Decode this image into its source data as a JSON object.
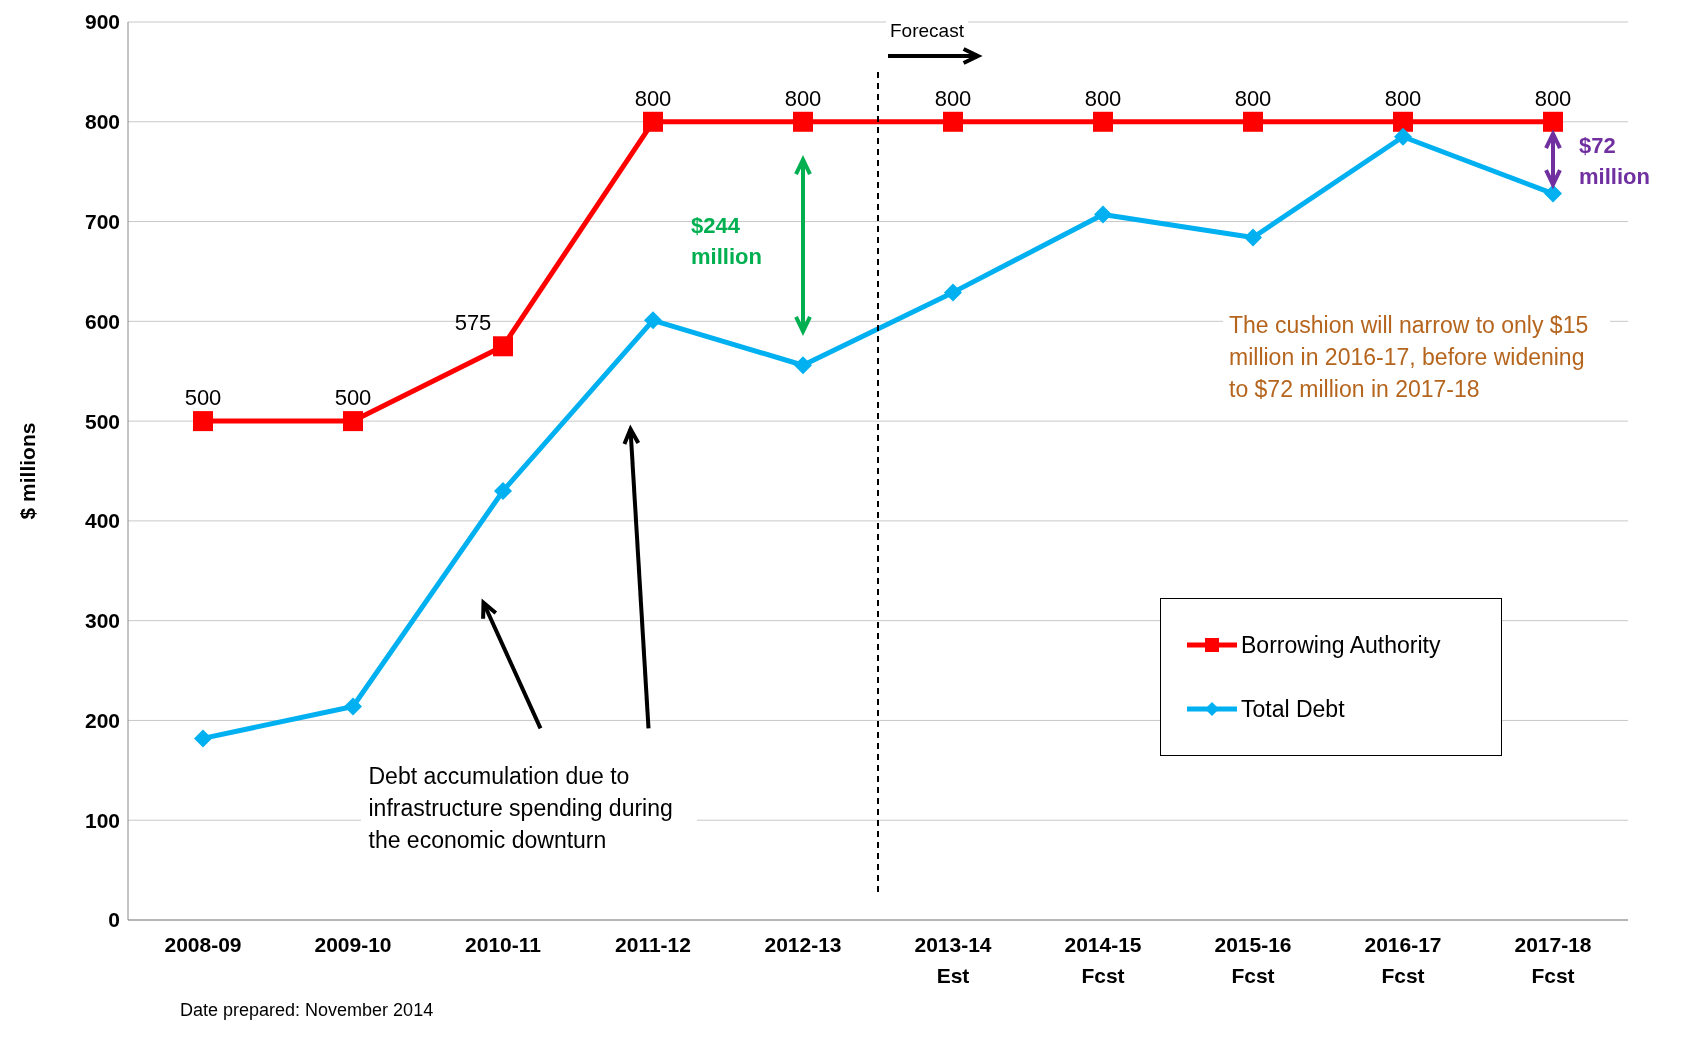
{
  "chart_data": {
    "type": "line",
    "ylabel": "$ millions",
    "categories": [
      "2008-09",
      "2009-10",
      "2010-11",
      "2011-12",
      "2012-13",
      "2013-14\nEst",
      "2014-15\nFcst",
      "2015-16\nFcst",
      "2016-17\nFcst",
      "2017-18\nFcst"
    ],
    "series": [
      {
        "name": "Borrowing Authority",
        "color": "#ff0000",
        "marker": "square",
        "values": [
          500,
          500,
          575,
          800,
          800,
          800,
          800,
          800,
          800,
          800
        ],
        "value_labels": [
          "500",
          "500",
          "575",
          "800",
          "800",
          "800",
          "800",
          "800",
          "800",
          "800"
        ]
      },
      {
        "name": "Total Debt",
        "color": "#00b0f0",
        "marker": "diamond",
        "values": [
          182,
          214,
          430,
          601,
          556,
          629,
          707,
          684,
          785,
          728
        ]
      }
    ],
    "ylim": [
      0,
      900
    ],
    "yticks": [
      0,
      100,
      200,
      300,
      400,
      500,
      600,
      700,
      800,
      900
    ],
    "grid": "y",
    "legend": "right",
    "annotations": [
      "$244 million",
      {
        "text": "$72 million",
        "x": "2017-18\nFcst",
        "y": 728
      },
      "Debt accumulation due to infrastructure spending during the economic downturn",
      "The cushion will narrow to only $15 million in 2016-17, before widening to $72 million in 2017-18",
      "Date prepared: November 2014",
      "Forecast"
    ]
  }
}
